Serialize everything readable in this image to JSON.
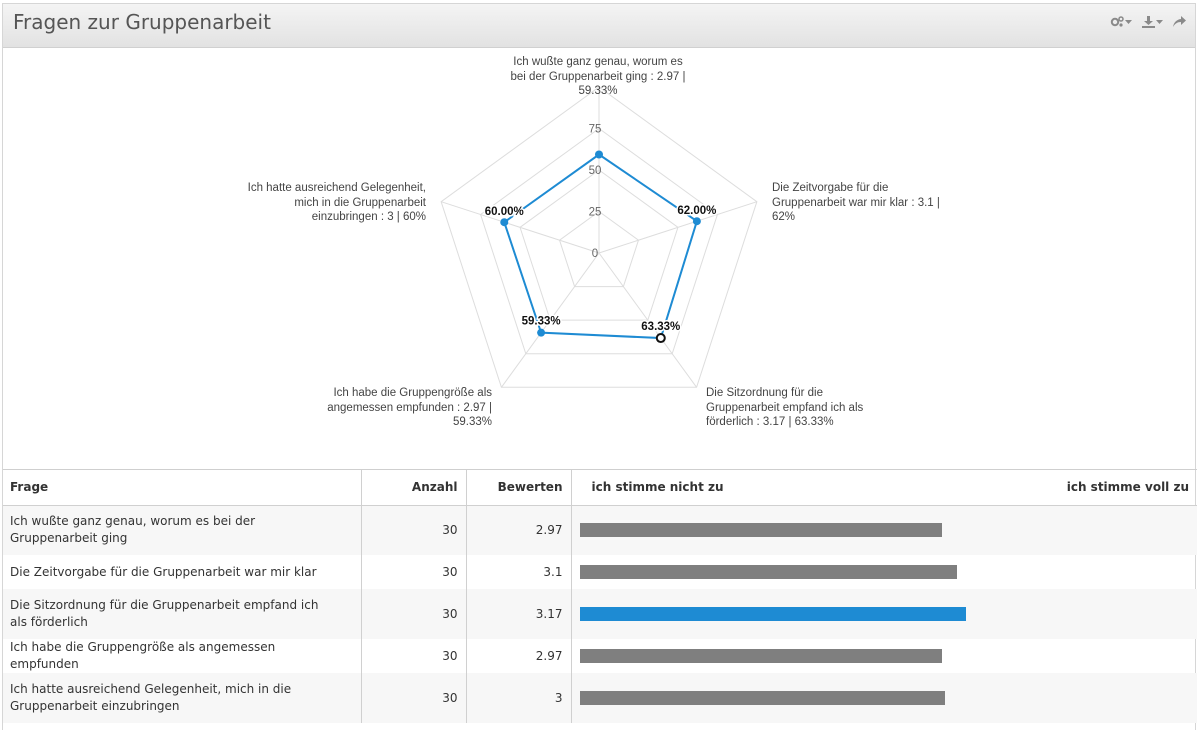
{
  "header": {
    "title": "Fragen zur Gruppenarbeit"
  },
  "toolbar": [
    {
      "icon": "settings-gear-icon"
    },
    {
      "icon": "download-icon"
    },
    {
      "icon": "share-icon"
    }
  ],
  "chart_data": {
    "type": "radar",
    "rmax": 100,
    "ticks": [
      0,
      25,
      50,
      75
    ],
    "grid": true,
    "series_color": "#1e8bd3",
    "categories": [
      "Ich wußte ganz genau, worum es bei der Gruppenarbeit ging : 2.97 | 59.33%",
      "Die Zeitvorgabe für die Gruppenarbeit war mir klar : 3.1 | 62%",
      "Die Sitzordnung für die Gruppenarbeit empfand ich als förderlich : 3.17 | 63.33%",
      "Ich habe die Gruppengröße als angemessen empfunden : 2.97 | 59.33%",
      "Ich hatte ausreichend Gelegenheit, mich in die Gruppenarbeit einzubringen : 3 | 60%"
    ],
    "values": [
      59.33,
      62.0,
      63.33,
      59.33,
      60.0
    ],
    "data_labels": [
      "",
      "62.00%",
      "63.33%",
      "59.33%",
      "60.00%"
    ],
    "highlighted_index": 2
  },
  "table": {
    "headers": {
      "frage": "Frage",
      "anzahl": "Anzahl",
      "bewerten": "Bewerten",
      "scale_min": "ich stimme nicht zu",
      "scale_max": "ich stimme voll zu"
    },
    "scale_max_value": 5,
    "highlight_color": "#1e8bd3",
    "bar_color": "#7f7f7f",
    "rows": [
      {
        "frage": "Ich wußte ganz genau, worum es bei der Gruppenarbeit ging",
        "anzahl": "30",
        "bewerten": "2.97",
        "value": 2.97,
        "highlight": false
      },
      {
        "frage": "Die Zeitvorgabe für die Gruppenarbeit war mir klar",
        "anzahl": "30",
        "bewerten": "3.1",
        "value": 3.1,
        "highlight": false
      },
      {
        "frage": "Die Sitzordnung für die Gruppenarbeit empfand ich als förderlich",
        "anzahl": "30",
        "bewerten": "3.17",
        "value": 3.17,
        "highlight": true
      },
      {
        "frage": "Ich habe die Gruppengröße als angemessen empfunden",
        "anzahl": "30",
        "bewerten": "2.97",
        "value": 2.97,
        "highlight": false
      },
      {
        "frage": "Ich hatte ausreichend Gelegenheit, mich in die Gruppenarbeit einzubringen",
        "anzahl": "30",
        "bewerten": "3",
        "value": 3,
        "highlight": false
      }
    ]
  }
}
